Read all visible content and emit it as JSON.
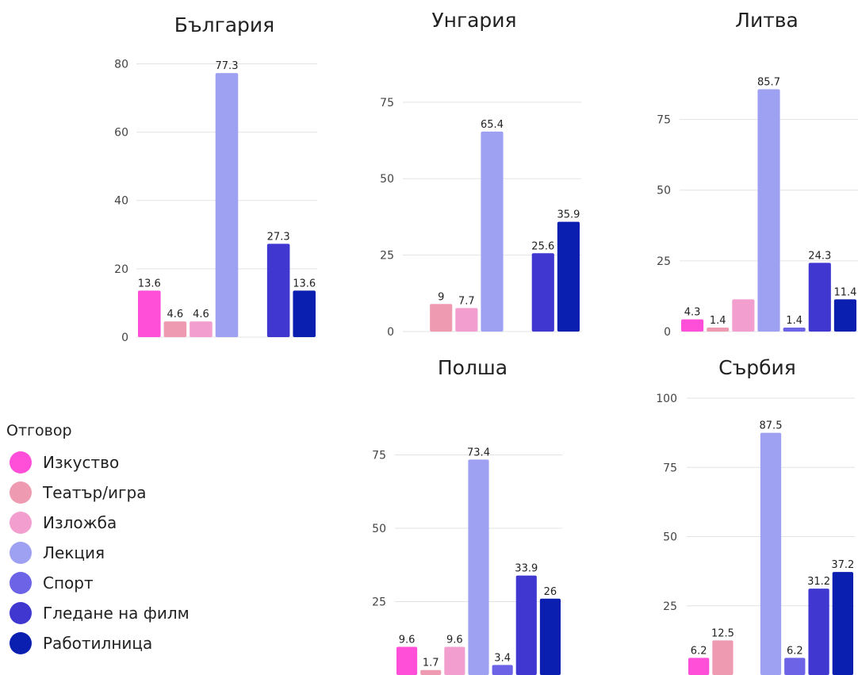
{
  "legend": {
    "title": "Отговор",
    "items": [
      {
        "label": "Изкуство",
        "color": "#ff4fd8"
      },
      {
        "label": "Театър/игра",
        "color": "#ee9bb2"
      },
      {
        "label": "Изложба",
        "color": "#f29fcf"
      },
      {
        "label": "Лекция",
        "color": "#9ea0f2"
      },
      {
        "label": "Спорт",
        "color": "#6c63e6"
      },
      {
        "label": "Гледане на филм",
        "color": "#3f37d0"
      },
      {
        "label": "Работилница",
        "color": "#0a1fb0"
      }
    ]
  },
  "chart_data": [
    {
      "type": "bar",
      "title": "България",
      "categories": [
        "Изкуство",
        "Театър/игра",
        "Изложба",
        "Лекция",
        "Спорт",
        "Гледане на филм",
        "Работилница"
      ],
      "values": [
        13.6,
        4.6,
        4.6,
        77.3,
        null,
        27.3,
        13.6
      ],
      "value_labels": [
        "13.6",
        "4.6",
        "4.6",
        "77.3",
        "",
        "27.3",
        "13.6"
      ],
      "ylim": [
        0,
        88
      ],
      "yticks": [
        0,
        20,
        40,
        60,
        80
      ]
    },
    {
      "type": "bar",
      "title": "Унгария",
      "categories": [
        "Изкуство",
        "Театър/игра",
        "Изложба",
        "Лекция",
        "Спорт",
        "Гледане на филм",
        "Работилница"
      ],
      "values": [
        null,
        9,
        7.7,
        65.4,
        null,
        25.6,
        35.9
      ],
      "value_labels": [
        "",
        "9",
        "7.7",
        "65.4",
        "",
        "25.6",
        "35.9"
      ],
      "ylim": [
        0,
        83
      ],
      "yticks": [
        0,
        25,
        50,
        75
      ]
    },
    {
      "type": "bar",
      "title": "Литва",
      "categories": [
        "Изкуство",
        "Театър/игра",
        "Изложба",
        "Лекция",
        "Спорт",
        "Гледане на филм",
        "Работилница"
      ],
      "values": [
        4.3,
        1.4,
        11.4,
        85.7,
        1.4,
        24.3,
        11.4
      ],
      "value_labels": [
        "4.3",
        "1.4",
        "",
        "85.7",
        "1.4",
        "24.3",
        "11.4"
      ],
      "ylim": [
        0,
        92
      ],
      "yticks": [
        0,
        25,
        50,
        75
      ]
    },
    {
      "type": "bar",
      "title": "Полша",
      "categories": [
        "Изкуство",
        "Театър/игра",
        "Изложба",
        "Лекция",
        "Спорт",
        "Гледане на филм",
        "Работилница"
      ],
      "values": [
        9.6,
        1.7,
        9.6,
        73.4,
        3.4,
        33.9,
        26
      ],
      "value_labels": [
        "9.6",
        "1.7",
        "9.6",
        "73.4",
        "3.4",
        "33.9",
        "26"
      ],
      "ylim": [
        0,
        80
      ],
      "yticks": [
        25,
        50,
        75
      ]
    },
    {
      "type": "bar",
      "title": "Сърбия",
      "categories": [
        "Изкуство",
        "Театър/игра",
        "Изложба",
        "Лекция",
        "Спорт",
        "Гледане на филм",
        "Работилница"
      ],
      "values": [
        6.2,
        12.5,
        null,
        87.5,
        6.2,
        31.2,
        37.2
      ],
      "value_labels": [
        "6.2",
        "12.5",
        "",
        "87.5",
        "6.2",
        "31.2",
        "37.2"
      ],
      "ylim": [
        0,
        100
      ],
      "yticks": [
        25,
        50,
        75,
        100
      ]
    }
  ]
}
